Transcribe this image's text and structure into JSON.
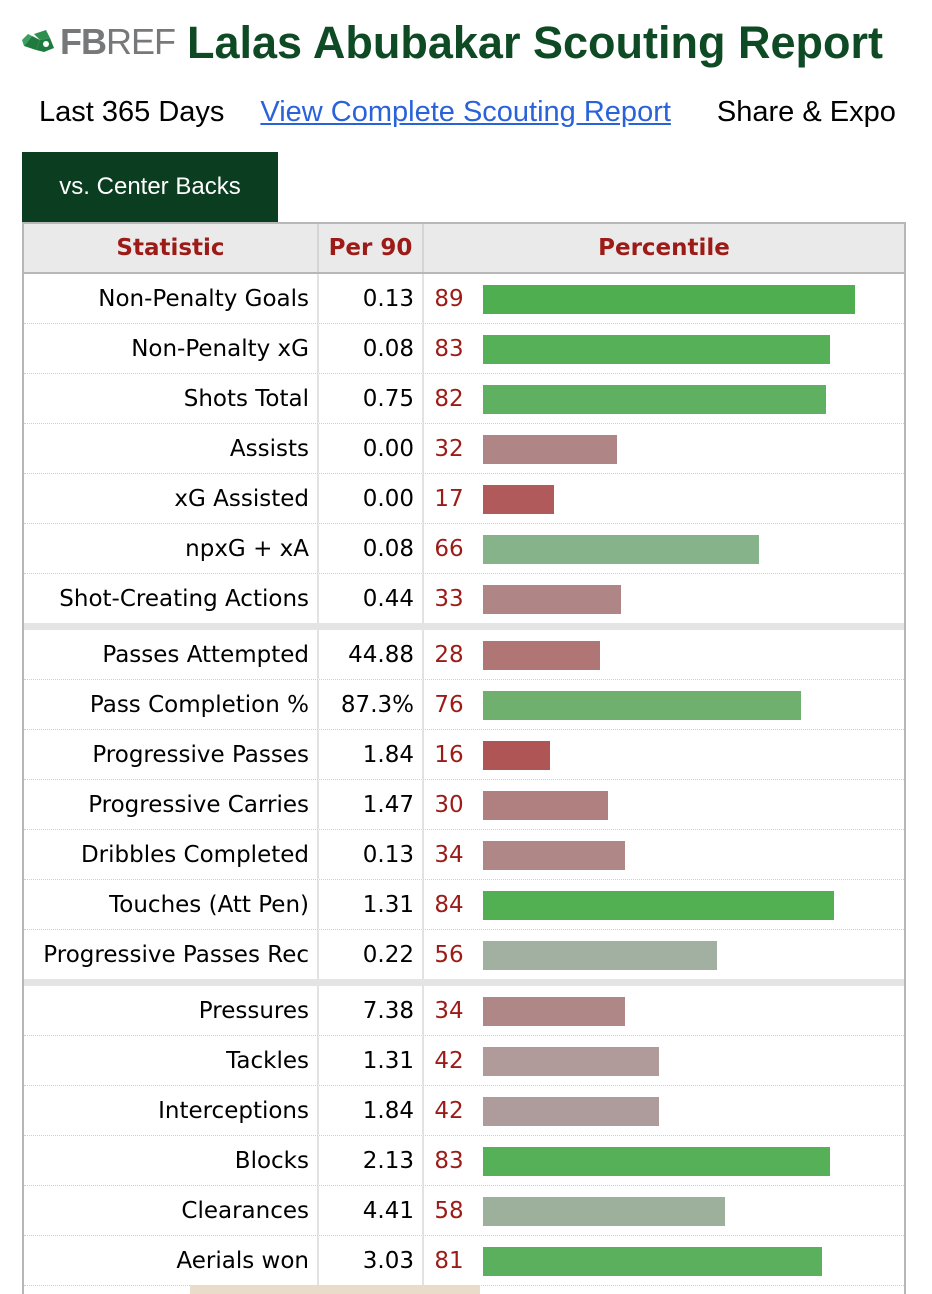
{
  "header": {
    "logo_bold": "FB",
    "logo_light": "REF",
    "title": "Lalas Abubakar Scouting Report"
  },
  "subnav": {
    "period": "Last 365 Days",
    "complete_link": "View Complete Scouting Report",
    "share": "Share & Expo"
  },
  "tab": {
    "label": "vs. Center Backs"
  },
  "table": {
    "headers": {
      "statistic": "Statistic",
      "per90": "Per 90",
      "percentile": "Percentile"
    },
    "groups": [
      {
        "rows": [
          {
            "stat": "Non-Penalty Goals",
            "per90": "0.13",
            "percentile": 89,
            "color": "#4fae4f"
          },
          {
            "stat": "Non-Penalty xG",
            "per90": "0.08",
            "percentile": 83,
            "color": "#55b058"
          },
          {
            "stat": "Shots Total",
            "per90": "0.75",
            "percentile": 82,
            "color": "#60b061"
          },
          {
            "stat": "Assists",
            "per90": "0.00",
            "percentile": 32,
            "color": "#b08585"
          },
          {
            "stat": "xG Assisted",
            "per90": "0.00",
            "percentile": 17,
            "color": "#b05a5c"
          },
          {
            "stat": "npxG + xA",
            "per90": "0.08",
            "percentile": 66,
            "color": "#86b38a"
          },
          {
            "stat": "Shot-Creating Actions",
            "per90": "0.44",
            "percentile": 33,
            "color": "#b08585"
          }
        ]
      },
      {
        "rows": [
          {
            "stat": "Passes Attempted",
            "per90": "44.88",
            "percentile": 28,
            "color": "#b07575"
          },
          {
            "stat": "Pass Completion %",
            "per90": "87.3%",
            "percentile": 76,
            "color": "#6fb06f"
          },
          {
            "stat": "Progressive Passes",
            "per90": "1.84",
            "percentile": 16,
            "color": "#b05556"
          },
          {
            "stat": "Progressive Carries",
            "per90": "1.47",
            "percentile": 30,
            "color": "#b08080"
          },
          {
            "stat": "Dribbles Completed",
            "per90": "0.13",
            "percentile": 34,
            "color": "#b08787"
          },
          {
            "stat": "Touches (Att Pen)",
            "per90": "1.31",
            "percentile": 84,
            "color": "#52b052"
          },
          {
            "stat": "Progressive Passes Rec",
            "per90": "0.22",
            "percentile": 56,
            "color": "#a2b0a2"
          }
        ]
      },
      {
        "rows": [
          {
            "stat": "Pressures",
            "per90": "7.38",
            "percentile": 34,
            "color": "#b08787"
          },
          {
            "stat": "Tackles",
            "per90": "1.31",
            "percentile": 42,
            "color": "#b09a9a"
          },
          {
            "stat": "Interceptions",
            "per90": "1.84",
            "percentile": 42,
            "color": "#ae9c9c"
          },
          {
            "stat": "Blocks",
            "per90": "2.13",
            "percentile": 83,
            "color": "#55b058"
          },
          {
            "stat": "Clearances",
            "per90": "4.41",
            "percentile": 58,
            "color": "#9cb09c"
          },
          {
            "stat": "Aerials won",
            "per90": "3.03",
            "percentile": 81,
            "color": "#5ab05c"
          }
        ]
      }
    ]
  }
}
